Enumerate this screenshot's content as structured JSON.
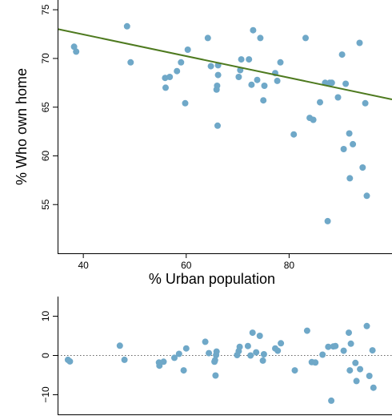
{
  "chart_data": [
    {
      "type": "scatter",
      "title": "",
      "xlabel": "% Urban population",
      "ylabel": "% Who own home",
      "xlim": [
        35,
        100
      ],
      "ylim": [
        50,
        76
      ],
      "x_ticks": [
        40,
        60,
        80
      ],
      "y_ticks": [
        55,
        60,
        65,
        70,
        75
      ],
      "grid": false,
      "point_color": "#6fa8c8",
      "line_color": "#4e7a1f",
      "regression_line": {
        "intercept": 76.9,
        "slope": -0.111
      },
      "points": [
        {
          "x": 38.2,
          "y": 71.2
        },
        {
          "x": 38.6,
          "y": 70.7
        },
        {
          "x": 48.5,
          "y": 73.3
        },
        {
          "x": 49.2,
          "y": 69.6
        },
        {
          "x": 55.9,
          "y": 68.0
        },
        {
          "x": 56.0,
          "y": 67.0
        },
        {
          "x": 56.8,
          "y": 68.1
        },
        {
          "x": 58.2,
          "y": 68.7
        },
        {
          "x": 59.0,
          "y": 69.6
        },
        {
          "x": 59.8,
          "y": 65.4
        },
        {
          "x": 60.3,
          "y": 70.9
        },
        {
          "x": 64.2,
          "y": 72.1
        },
        {
          "x": 64.8,
          "y": 69.2
        },
        {
          "x": 65.9,
          "y": 66.8
        },
        {
          "x": 66.0,
          "y": 67.2
        },
        {
          "x": 66.1,
          "y": 63.1
        },
        {
          "x": 66.2,
          "y": 68.3
        },
        {
          "x": 66.2,
          "y": 69.3
        },
        {
          "x": 70.2,
          "y": 68.1
        },
        {
          "x": 70.5,
          "y": 68.8
        },
        {
          "x": 70.7,
          "y": 69.9
        },
        {
          "x": 72.2,
          "y": 69.9
        },
        {
          "x": 72.7,
          "y": 67.3
        },
        {
          "x": 73.0,
          "y": 72.9
        },
        {
          "x": 73.8,
          "y": 67.8
        },
        {
          "x": 74.4,
          "y": 72.1
        },
        {
          "x": 75.0,
          "y": 65.7
        },
        {
          "x": 75.2,
          "y": 67.2
        },
        {
          "x": 77.3,
          "y": 68.5
        },
        {
          "x": 77.7,
          "y": 67.7
        },
        {
          "x": 78.3,
          "y": 69.6
        },
        {
          "x": 80.9,
          "y": 62.2
        },
        {
          "x": 83.2,
          "y": 72.1
        },
        {
          "x": 84.0,
          "y": 63.9
        },
        {
          "x": 84.7,
          "y": 63.7
        },
        {
          "x": 86.0,
          "y": 65.5
        },
        {
          "x": 87.0,
          "y": 67.5
        },
        {
          "x": 87.5,
          "y": 53.3
        },
        {
          "x": 87.9,
          "y": 67.5
        },
        {
          "x": 88.3,
          "y": 67.5
        },
        {
          "x": 89.5,
          "y": 66.0
        },
        {
          "x": 90.3,
          "y": 70.4
        },
        {
          "x": 90.6,
          "y": 60.7
        },
        {
          "x": 91.0,
          "y": 67.4
        },
        {
          "x": 91.7,
          "y": 62.3
        },
        {
          "x": 91.8,
          "y": 57.7
        },
        {
          "x": 92.4,
          "y": 61.2
        },
        {
          "x": 93.7,
          "y": 71.6
        },
        {
          "x": 94.3,
          "y": 58.8
        },
        {
          "x": 94.8,
          "y": 65.4
        },
        {
          "x": 95.1,
          "y": 55.9
        }
      ]
    },
    {
      "type": "scatter",
      "title": "",
      "xlabel": "",
      "ylabel": "",
      "xlim": [
        35,
        100
      ],
      "ylim": [
        -15,
        15
      ],
      "y_ticks": [
        -10,
        0,
        10
      ],
      "grid": false,
      "point_color": "#6fa8c8",
      "reference_line": {
        "y": 0,
        "style": "dotted",
        "color": "#666666"
      },
      "points": [
        {
          "x": 37.0,
          "y": -1.1
        },
        {
          "x": 37.4,
          "y": -1.5
        },
        {
          "x": 47.1,
          "y": 2.5
        },
        {
          "x": 48.0,
          "y": -1.1
        },
        {
          "x": 54.7,
          "y": -1.8
        },
        {
          "x": 54.8,
          "y": -2.6
        },
        {
          "x": 55.6,
          "y": -1.6
        },
        {
          "x": 57.7,
          "y": -0.6
        },
        {
          "x": 58.6,
          "y": 0.4
        },
        {
          "x": 59.5,
          "y": -3.8
        },
        {
          "x": 60.0,
          "y": 1.8
        },
        {
          "x": 63.7,
          "y": 3.5
        },
        {
          "x": 64.4,
          "y": 0.6
        },
        {
          "x": 65.5,
          "y": -1.6
        },
        {
          "x": 65.6,
          "y": -1.2
        },
        {
          "x": 65.7,
          "y": -5.1
        },
        {
          "x": 65.8,
          "y": 0.1
        },
        {
          "x": 65.9,
          "y": 1.0
        },
        {
          "x": 69.9,
          "y": 0.1
        },
        {
          "x": 70.2,
          "y": 1.1
        },
        {
          "x": 70.4,
          "y": 2.2
        },
        {
          "x": 72.0,
          "y": 2.4
        },
        {
          "x": 72.5,
          "y": 0.0
        },
        {
          "x": 72.9,
          "y": 5.8
        },
        {
          "x": 73.6,
          "y": 0.8
        },
        {
          "x": 74.3,
          "y": 5.0
        },
        {
          "x": 74.9,
          "y": -1.3
        },
        {
          "x": 75.1,
          "y": 0.3
        },
        {
          "x": 77.3,
          "y": 1.8
        },
        {
          "x": 77.8,
          "y": 1.2
        },
        {
          "x": 78.4,
          "y": 3.1
        },
        {
          "x": 81.1,
          "y": -3.8
        },
        {
          "x": 83.5,
          "y": 6.3
        },
        {
          "x": 84.4,
          "y": -1.7
        },
        {
          "x": 85.1,
          "y": -1.8
        },
        {
          "x": 86.5,
          "y": 0.2
        },
        {
          "x": 87.6,
          "y": 2.2
        },
        {
          "x": 88.2,
          "y": -11.5
        },
        {
          "x": 88.6,
          "y": 2.3
        },
        {
          "x": 89.0,
          "y": 2.4
        },
        {
          "x": 90.6,
          "y": 1.2
        },
        {
          "x": 91.6,
          "y": 5.8
        },
        {
          "x": 91.8,
          "y": -3.8
        },
        {
          "x": 92.0,
          "y": 3.0
        },
        {
          "x": 92.9,
          "y": -1.9
        },
        {
          "x": 93.1,
          "y": -6.5
        },
        {
          "x": 93.8,
          "y": -3.5
        },
        {
          "x": 95.1,
          "y": 7.5
        },
        {
          "x": 95.6,
          "y": -5.2
        },
        {
          "x": 96.2,
          "y": 1.3
        },
        {
          "x": 96.4,
          "y": -8.2
        }
      ]
    }
  ]
}
